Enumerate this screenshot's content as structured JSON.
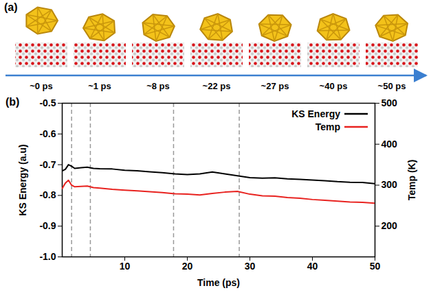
{
  "panels": {
    "a": {
      "label": "(a)",
      "times": [
        "~0 ps",
        "~1 ps",
        "~8 ps",
        "~22 ps",
        "~27 ps",
        "~40 ps",
        "~50 ps"
      ]
    },
    "b": {
      "label": "(b)"
    }
  },
  "chart_data": {
    "type": "line",
    "xlabel": "Time (ps)",
    "ylabel": "KS Energy (a.u)",
    "y2label": "Temp (K)",
    "xlim": [
      0,
      50
    ],
    "xticks": [
      10,
      20,
      30,
      40,
      50
    ],
    "ylim": [
      -1.0,
      -0.5
    ],
    "yticks": [
      {
        "value": -1.0,
        "label": "-1.0"
      },
      {
        "value": -0.9,
        "label": "-0.9"
      },
      {
        "value": -0.8,
        "label": "-0.8"
      },
      {
        "value": -0.7,
        "label": "-0.7"
      },
      {
        "value": -0.6,
        "label": "-0.6"
      },
      {
        "value": -0.5,
        "label": "-0.5"
      }
    ],
    "y2lim": [
      125,
      500
    ],
    "y2ticks": [
      200,
      300,
      400,
      500
    ],
    "legend": "upper right",
    "event_times": [
      1.5,
      4.5,
      17.8,
      28.3
    ],
    "x": [
      0,
      0.5,
      1,
      1.5,
      2,
      3,
      4,
      5,
      6,
      8,
      10,
      12,
      14,
      16,
      18,
      20,
      22,
      24,
      26,
      28,
      30,
      32,
      34,
      36,
      38,
      40,
      42,
      44,
      46,
      48,
      50
    ],
    "series": [
      {
        "name": "KS Energy",
        "color": "#000000",
        "values": [
          -0.72,
          -0.715,
          -0.7,
          -0.705,
          -0.712,
          -0.71,
          -0.708,
          -0.712,
          -0.713,
          -0.714,
          -0.718,
          -0.72,
          -0.723,
          -0.726,
          -0.73,
          -0.732,
          -0.73,
          -0.724,
          -0.73,
          -0.736,
          -0.742,
          -0.744,
          -0.743,
          -0.746,
          -0.748,
          -0.75,
          -0.752,
          -0.755,
          -0.757,
          -0.758,
          -0.762
        ]
      },
      {
        "name": "Temp",
        "color": "#e8221f",
        "axis": "y2",
        "values": [
          292,
          305,
          312,
          300,
          296,
          297,
          298,
          294,
          293,
          290,
          288,
          286,
          284,
          282,
          279,
          278,
          276,
          280,
          283,
          285,
          278,
          274,
          273,
          270,
          268,
          265,
          263,
          261,
          259,
          258,
          256
        ]
      }
    ]
  }
}
